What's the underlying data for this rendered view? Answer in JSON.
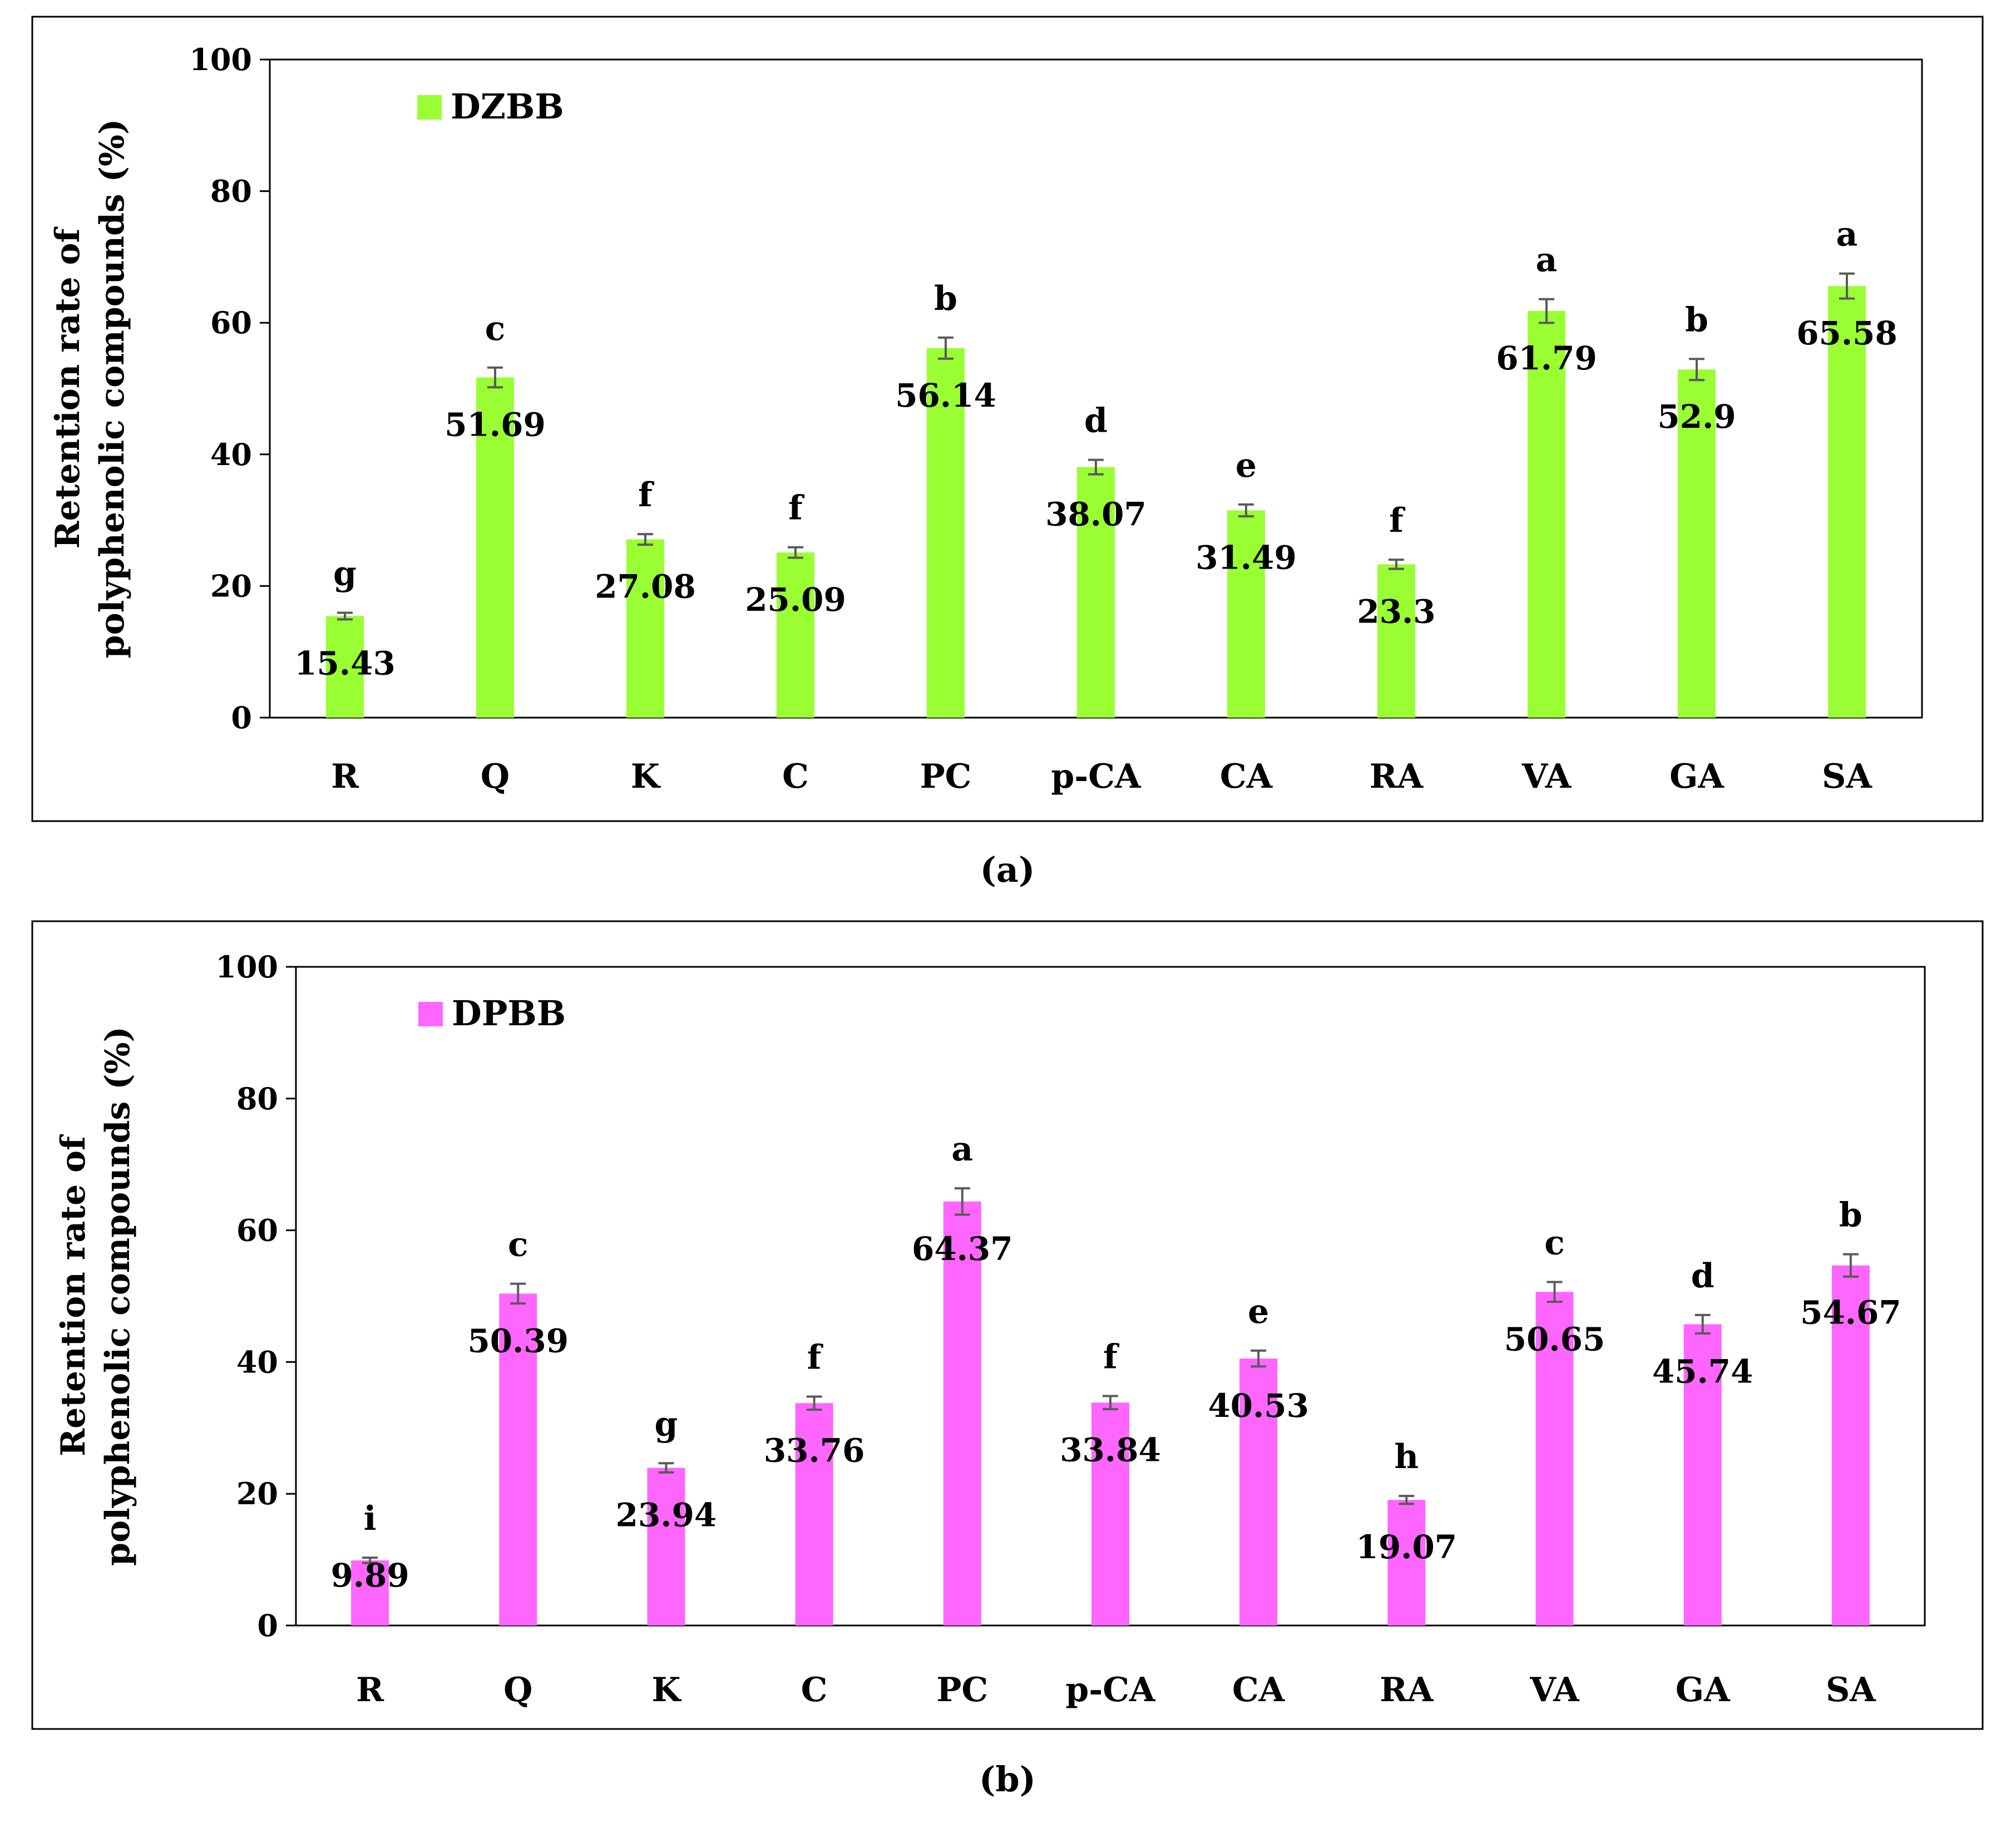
{
  "chart_data": [
    {
      "type": "bar",
      "panel_label": "(a)",
      "ylabel": [
        "Retention rate of",
        "polyphenolic compounds (%)"
      ],
      "ylim": [
        0,
        100
      ],
      "yticks": [
        0,
        20,
        40,
        60,
        80,
        100
      ],
      "categories": [
        "R",
        "Q",
        "K",
        "C",
        "PC",
        "p-CA",
        "CA",
        "RA",
        "VA",
        "GA",
        "SA"
      ],
      "legend_position": "top-left",
      "series": [
        {
          "name": "DZBB",
          "color": "#99ff33",
          "values": [
            15.43,
            51.69,
            27.08,
            25.09,
            56.14,
            38.07,
            31.49,
            23.3,
            61.79,
            52.9,
            65.58
          ],
          "value_labels": [
            "15.43",
            "51.69",
            "27.08",
            "25.09",
            "56.14",
            "38.07",
            "31.49",
            "23.3",
            "61.79",
            "52.9",
            "65.58"
          ],
          "errors": [
            0.5,
            1.5,
            0.8,
            0.8,
            1.6,
            1.1,
            0.9,
            0.7,
            1.8,
            1.6,
            1.9
          ],
          "significance": [
            "g",
            "c",
            "f",
            "f",
            "b",
            "d",
            "e",
            "f",
            "a",
            "b",
            "a"
          ]
        }
      ]
    },
    {
      "type": "bar",
      "panel_label": "(b)",
      "ylabel": [
        "Retention rate of",
        "polyphenolic compounds (%)"
      ],
      "ylim": [
        0,
        100
      ],
      "yticks": [
        0,
        20,
        40,
        60,
        80,
        100
      ],
      "categories": [
        "R",
        "Q",
        "K",
        "C",
        "PC",
        "p-CA",
        "CA",
        "RA",
        "VA",
        "GA",
        "SA"
      ],
      "legend_position": "top-left",
      "series": [
        {
          "name": "DPBB",
          "color": "#ff66ff",
          "values": [
            9.89,
            50.39,
            23.94,
            33.76,
            64.37,
            33.84,
            40.53,
            19.07,
            50.65,
            45.74,
            54.67
          ],
          "value_labels": [
            "9.89",
            "50.39",
            "23.94",
            "33.76",
            "64.37",
            "33.84",
            "40.53",
            "19.07",
            "50.65",
            "45.74",
            "54.67"
          ],
          "errors": [
            0.4,
            1.5,
            0.7,
            1.0,
            2.0,
            1.0,
            1.2,
            0.6,
            1.5,
            1.4,
            1.7
          ],
          "significance": [
            "i",
            "c",
            "g",
            "f",
            "a",
            "f",
            "e",
            "h",
            "c",
            "d",
            "b"
          ]
        }
      ]
    }
  ]
}
